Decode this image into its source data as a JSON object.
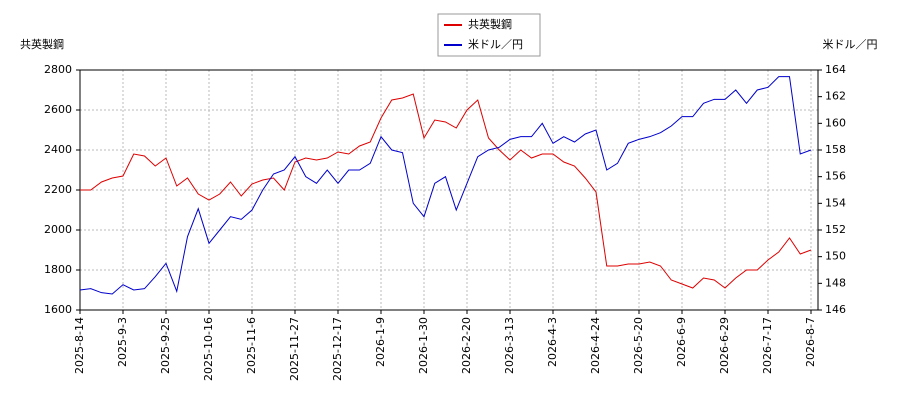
{
  "chart_data": {
    "type": "line",
    "y_label": "共英製鋼",
    "y2_label": "米ドル／円",
    "categories": [
      "2025-8-14",
      null,
      null,
      null,
      "2025-9-3",
      null,
      null,
      null,
      "2025-9-25",
      null,
      null,
      null,
      "2025-10-16",
      null,
      null,
      null,
      "2025-11-6",
      null,
      null,
      null,
      "2025-11-27",
      null,
      null,
      null,
      "2025-12-17",
      null,
      null,
      null,
      "2026-1-9",
      null,
      null,
      null,
      "2026-1-30",
      null,
      null,
      null,
      "2026-2-20",
      null,
      null,
      null,
      "2026-3-13",
      null,
      null,
      null,
      "2026-4-3",
      null,
      null,
      null,
      "2026-4-24",
      null,
      null,
      null,
      "2026-5-20",
      null,
      null,
      null,
      "2026-6-9",
      null,
      null,
      null,
      "2026-6-29",
      null,
      null,
      null,
      "2026-7-17",
      null,
      null,
      null,
      "2026-8-7"
    ],
    "series": [
      {
        "name": "共英製鋼",
        "color": "#dd0000",
        "axis": "y",
        "values": [
          2200,
          2200,
          2240,
          2260,
          2270,
          2380,
          2370,
          2320,
          2360,
          2220,
          2260,
          2180,
          2150,
          2180,
          2240,
          2170,
          2230,
          2250,
          2260,
          2200,
          2340,
          2360,
          2350,
          2360,
          2390,
          2380,
          2420,
          2440,
          2560,
          2650,
          2660,
          2680,
          2460,
          2550,
          2540,
          2510,
          2600,
          2650,
          2460,
          2400,
          2350,
          2400,
          2360,
          2380,
          2380,
          2340,
          2320,
          2260,
          2190,
          1820,
          1820,
          1830,
          1830,
          1840,
          1820,
          1750,
          1730,
          1710,
          1760,
          1750,
          1710,
          1760,
          1800,
          1800,
          1850,
          1890,
          1960,
          1880,
          1900
        ]
      },
      {
        "name": "米ドル／円",
        "color": "#0000cc",
        "axis": "y2",
        "values": [
          147.5,
          147.6,
          147.3,
          147.2,
          147.9,
          147.5,
          147.6,
          148.5,
          149.5,
          147.4,
          151.5,
          153.6,
          151.0,
          152.0,
          153.0,
          152.8,
          153.5,
          155.0,
          156.2,
          156.5,
          157.5,
          156.0,
          155.5,
          156.5,
          155.5,
          156.5,
          156.5,
          157.0,
          159.0,
          158.0,
          157.8,
          154.0,
          153.0,
          155.5,
          156.0,
          153.5,
          155.5,
          157.5,
          158.0,
          158.2,
          158.8,
          159.0,
          159.0,
          160.0,
          158.5,
          159.0,
          158.6,
          159.2,
          159.5,
          156.5,
          157.0,
          158.5,
          158.8,
          159.0,
          159.3,
          159.8,
          160.5,
          160.5,
          161.5,
          161.8,
          161.8,
          162.5,
          161.5,
          162.5,
          162.7,
          163.5,
          163.5,
          157.7,
          158.0
        ]
      }
    ],
    "ylim": [
      1600,
      2800
    ],
    "yticks": [
      1600,
      1800,
      2000,
      2200,
      2400,
      2600,
      2800
    ],
    "y2lim": [
      146,
      164
    ],
    "y2ticks": [
      146,
      148,
      150,
      152,
      154,
      156,
      158,
      160,
      162,
      164
    ],
    "grid": true
  }
}
